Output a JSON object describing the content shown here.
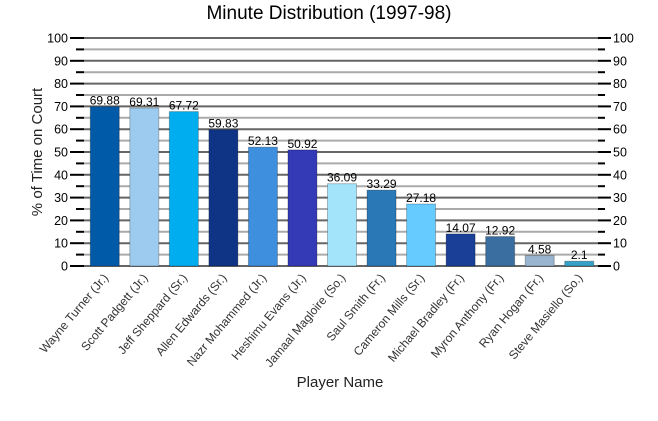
{
  "chart_data": {
    "type": "bar",
    "title": "Minute Distribution (1997-98)",
    "xlabel": "Player Name",
    "ylabel": "% of Time on Court",
    "ylim": [
      0,
      100
    ],
    "yticks": [
      0,
      10,
      20,
      30,
      40,
      50,
      60,
      70,
      80,
      90,
      100
    ],
    "grid": true,
    "categories": [
      "Wayne Turner (Jr.)",
      "Scott Padgett (Jr.)",
      "Jeff Sheppard (Sr.)",
      "Allen Edwards (Sr.)",
      "Nazr Mohammed (Jr.)",
      "Heshimu Evans (Jr.)",
      "Jamaal Magloire (So.)",
      "Saul Smith (Fr.)",
      "Cameron Mills (Sr.)",
      "Michael Bradley (Fr.)",
      "Myron Anthony (Fr.)",
      "Ryan Hogan (Fr.)",
      "Steve Masiello (So.)"
    ],
    "values": [
      69.88,
      69.31,
      67.72,
      59.83,
      52.13,
      50.92,
      36.09,
      33.29,
      27.18,
      14.07,
      12.92,
      4.58,
      2.1
    ],
    "value_labels": [
      "69.88",
      "69.31",
      "67.72",
      "59.83",
      "52.13",
      "50.92",
      "36.09",
      "33.29",
      "27.18",
      "14.07",
      "12.92",
      "4.58",
      "2.1"
    ],
    "colors": [
      "#005aa8",
      "#9dcbef",
      "#00aeef",
      "#0f3486",
      "#3e8fdd",
      "#3439b5",
      "#a4e4fb",
      "#2a78b6",
      "#66ccff",
      "#1a3f97",
      "#3a6ea0",
      "#9ab5d0",
      "#35a0c8"
    ]
  }
}
